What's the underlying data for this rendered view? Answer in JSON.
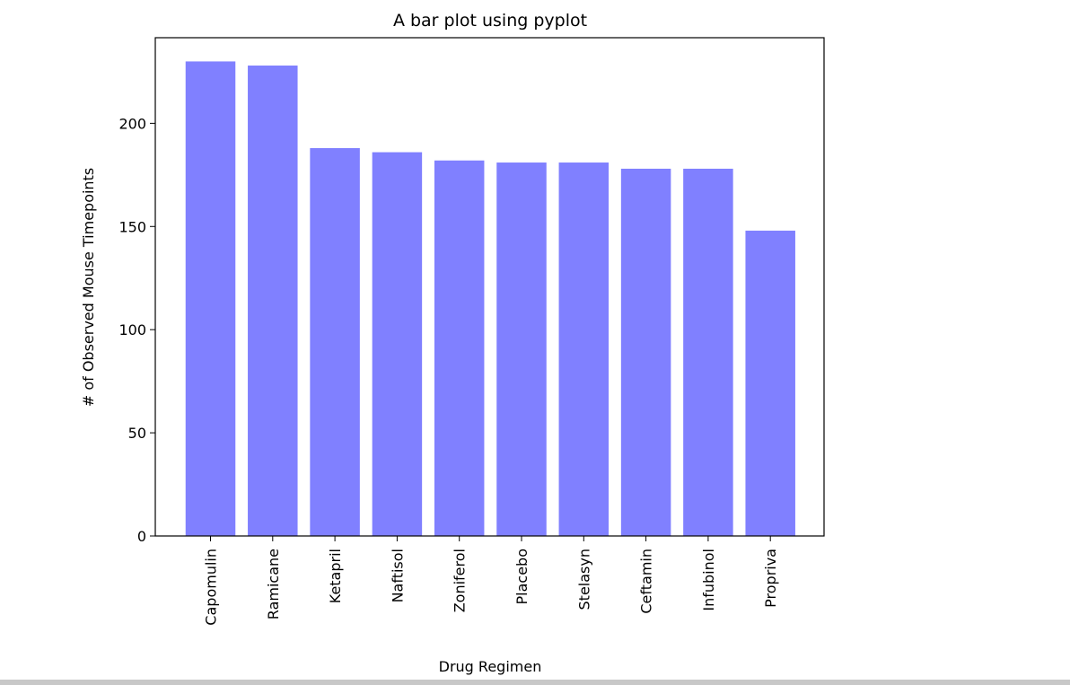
{
  "chart_data": {
    "type": "bar",
    "title": "A bar plot using pyplot",
    "xlabel": "Drug Regimen",
    "ylabel": "# of Observed Mouse Timepoints",
    "categories": [
      "Capomulin",
      "Ramicane",
      "Ketapril",
      "Naftisol",
      "Zoniferol",
      "Placebo",
      "Stelasyn",
      "Ceftamin",
      "Infubinol",
      "Propriva"
    ],
    "values": [
      230,
      228,
      188,
      186,
      182,
      181,
      181,
      178,
      178,
      148
    ],
    "ylim": [
      0,
      241.5
    ],
    "yticks": [
      0,
      50,
      100,
      150,
      200
    ],
    "bar_color": "#8080ff",
    "grid": false,
    "legend": "none"
  }
}
